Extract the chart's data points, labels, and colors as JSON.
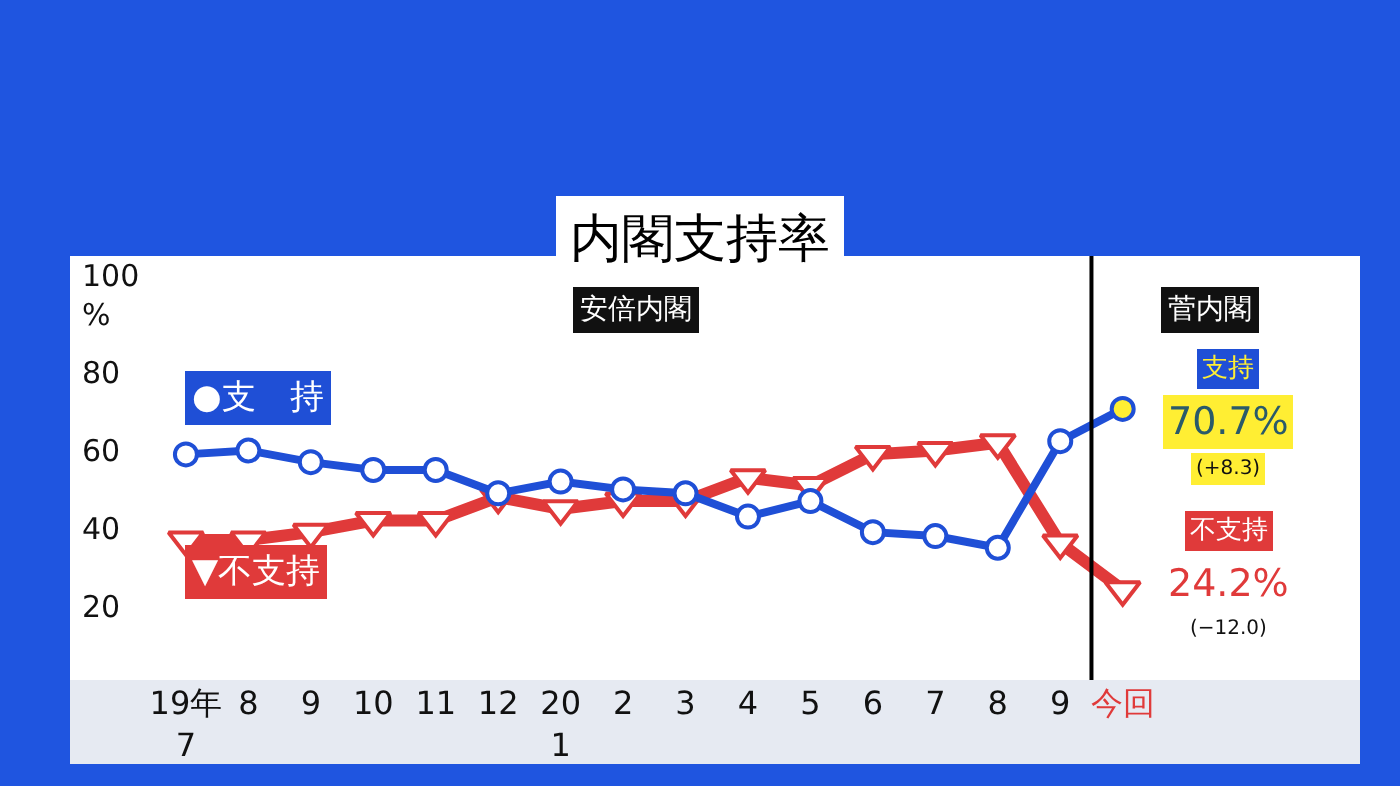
{
  "chart_data": {
    "type": "line",
    "title": "内閣支持率",
    "categories": [
      "19年\n7",
      "8",
      "9",
      "10",
      "11",
      "12",
      "20\n1",
      "2",
      "3",
      "4",
      "5",
      "6",
      "7",
      "8",
      "9",
      "今回"
    ],
    "series": [
      {
        "name": "●支　持",
        "color": "#1f4fd6",
        "marker": "circle",
        "colors": [
          "#ffffff",
          "#ffffff",
          "#ffffff",
          "#ffffff",
          "#ffffff",
          "#ffffff",
          "#ffffff",
          "#ffffff",
          "#ffffff",
          "#ffffff",
          "#ffffff",
          "#ffffff",
          "#ffffff",
          "#ffffff",
          "#ffffff",
          "#ffee33"
        ],
        "values": [
          59,
          60,
          57,
          55,
          55,
          49,
          52,
          50,
          49,
          43,
          47,
          39,
          38,
          35,
          62.4,
          70.7
        ]
      },
      {
        "name": "▼不支持",
        "color": "#e03a3a",
        "marker": "triangle",
        "colors": [
          "#ffffff",
          "#ffffff",
          "#ffffff",
          "#ffffff",
          "#ffffff",
          "#ffffff",
          "#ffffff",
          "#ffffff",
          "#ffffff",
          "#ffffff",
          "#ffffff",
          "#ffffff",
          "#ffffff",
          "#ffffff",
          "#ffffff",
          "#ffffff"
        ],
        "values": [
          37,
          37,
          39,
          42,
          42,
          48,
          45,
          47,
          47,
          53,
          51,
          59,
          60,
          62,
          36.2,
          24.2
        ]
      }
    ],
    "ylim": [
      1,
      110
    ],
    "yticks": [
      20,
      40,
      60,
      80,
      {
        "value": 100,
        "label": "100\n%"
      }
    ],
    "annotations": [
      "安倍内閣",
      "菅内閣",
      "支持",
      "70.7%",
      "(+8.3)",
      "不支持",
      "24.2%",
      "(−12.0)"
    ],
    "legend": false,
    "line_style": "solid"
  }
}
